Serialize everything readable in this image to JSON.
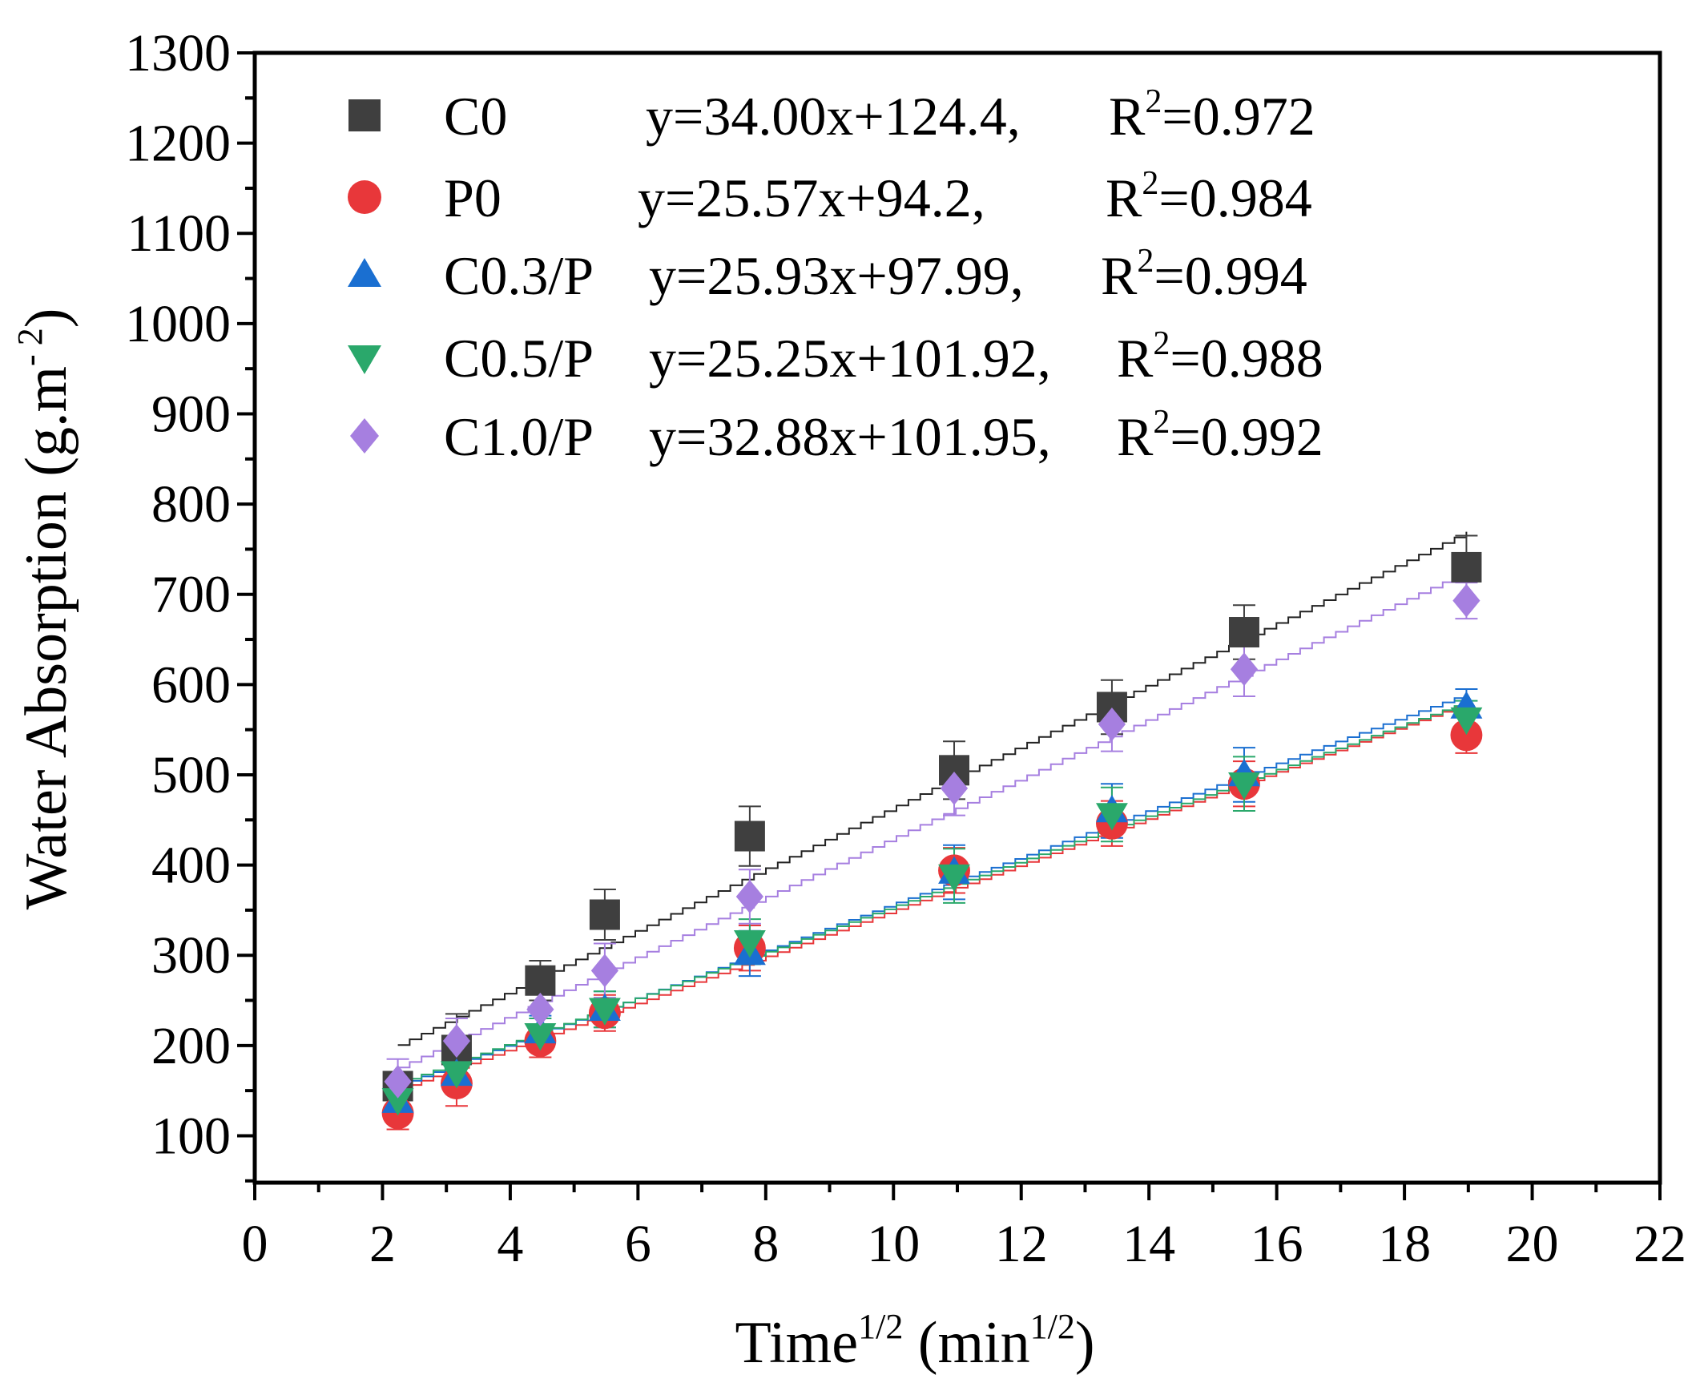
{
  "chart_data": {
    "type": "scatter",
    "title": "",
    "xlabel": {
      "main": "Time",
      "sup": "1/2",
      "unit_open": " (min",
      "unit_sup": "1/2",
      "unit_close": ")"
    },
    "ylabel": {
      "main": "Water Absorption (g.m",
      "sup": "- 2",
      "close": ")"
    },
    "xlim": [
      0,
      22
    ],
    "ylim": [
      1300,
      0
    ],
    "ylim_note": "y axis spans 1300 at top down to axis baseline",
    "x_ticks": [
      "0",
      "2",
      "4",
      "6",
      "8",
      "10",
      "12",
      "14",
      "16",
      "18",
      "20",
      "22"
    ],
    "y_ticks": [
      "100",
      "200",
      "300",
      "400",
      "500",
      "600",
      "700",
      "800",
      "900",
      "1000",
      "1100",
      "1200",
      "1300"
    ],
    "legend_position": "top-left",
    "x": [
      2.24,
      3.16,
      4.47,
      5.48,
      7.75,
      10.95,
      13.42,
      15.49,
      18.97
    ],
    "series": [
      {
        "name": "C0",
        "marker": "square",
        "color": "#3f3f3f",
        "equation": "y=34.00x+124.4,",
        "r2_prefix": "R",
        "r2_sup": "2",
        "r2_value": "=0.972",
        "slope": 34.0,
        "intercept": 124.4,
        "values": [
          155,
          195,
          272,
          345,
          432,
          505,
          575,
          658,
          730
        ],
        "errors": [
          15,
          40,
          22,
          28,
          33,
          32,
          30,
          30,
          35
        ]
      },
      {
        "name": "P0",
        "marker": "circle",
        "color": "#e8373a",
        "equation": "y=25.57x+94.2,",
        "r2_prefix": "R",
        "r2_sup": "2",
        "r2_value": "=0.984",
        "slope": 25.57,
        "intercept": 94.2,
        "values": [
          125,
          158,
          205,
          236,
          308,
          394,
          446,
          490,
          544
        ],
        "errors": [
          18,
          25,
          18,
          20,
          25,
          25,
          25,
          25,
          20
        ]
      },
      {
        "name": "C0.3/P",
        "marker": "triangle-up",
        "color": "#1a6fd1",
        "equation": "y=25.93x+97.99,",
        "r2_prefix": "R",
        "r2_sup": "2",
        "r2_value": "=0.994",
        "slope": 25.93,
        "intercept": 97.99,
        "values": [
          138,
          168,
          215,
          240,
          302,
          392,
          460,
          500,
          575
        ],
        "errors": [
          18,
          20,
          18,
          20,
          25,
          30,
          30,
          30,
          20
        ]
      },
      {
        "name": "C0.5/P",
        "marker": "triangle-down",
        "color": "#2aa86b",
        "equation": "y=25.25x+101.92,",
        "r2_prefix": "R",
        "r2_sup": "2",
        "r2_value": "=0.988",
        "slope": 25.25,
        "intercept": 101.92,
        "values": [
          140,
          170,
          212,
          240,
          315,
          388,
          456,
          490,
          562
        ],
        "errors": [
          18,
          20,
          18,
          20,
          25,
          30,
          30,
          30,
          20
        ]
      },
      {
        "name": "C1.0/P",
        "marker": "diamond",
        "color": "#a67fe0",
        "equation": "y=32.88x+101.95,",
        "r2_prefix": "R",
        "r2_sup": "2",
        "r2_value": "=0.992",
        "slope": 32.88,
        "intercept": 101.95,
        "values": [
          160,
          205,
          240,
          283,
          365,
          485,
          556,
          617,
          693
        ],
        "errors": [
          25,
          25,
          20,
          30,
          30,
          30,
          30,
          30,
          20
        ]
      }
    ]
  }
}
